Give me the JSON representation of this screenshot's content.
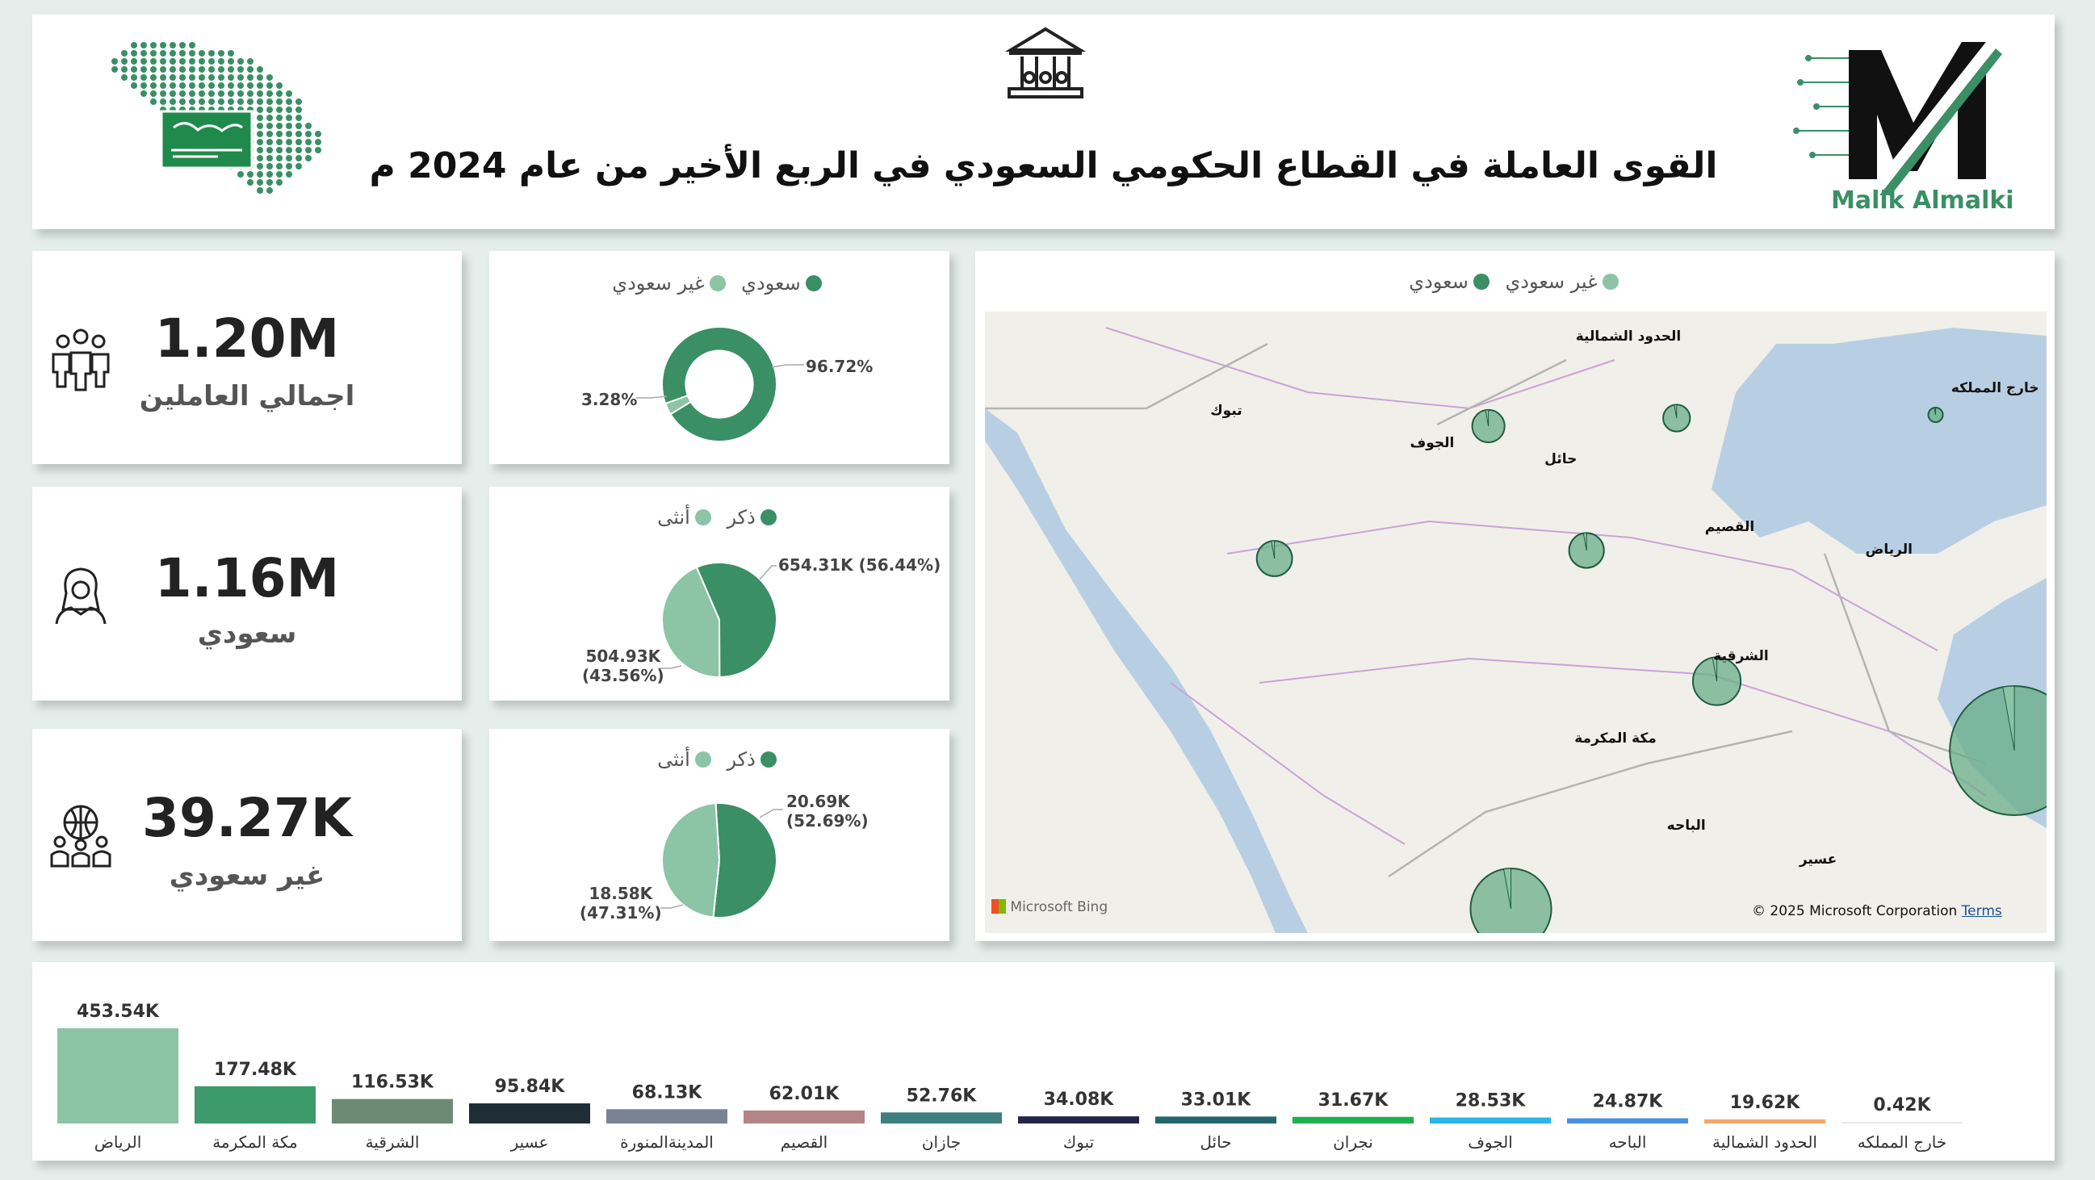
{
  "header": {
    "title": "القوى العاملة في القطاع الحكومي السعودي في الربع الأخير من عام 2024 م",
    "brand_name": "Malik Almalki"
  },
  "kpis": [
    {
      "value": "1.20M",
      "label": "اجمالي العاملين",
      "icon": "people-group-icon"
    },
    {
      "value": "1.16M",
      "label": "سعودي",
      "icon": "saudi-man-icon"
    },
    {
      "value": "39.27K",
      "label": "غير سعودي",
      "icon": "globe-people-icon"
    }
  ],
  "colors": {
    "dark_green": "#3a8f65",
    "light_green": "#8cc4a6",
    "map_bubble": "#6aad88",
    "water": "#b8cfe3",
    "land": "#f1efea"
  },
  "chart_data": [
    {
      "type": "pie",
      "id": "nationality",
      "legend": [
        "سعودي",
        "غير سعودي"
      ],
      "slices": [
        {
          "name": "سعودي",
          "value": 96.72,
          "label": "96.72%"
        },
        {
          "name": "غير سعودي",
          "value": 3.28,
          "label": "3.28%"
        }
      ],
      "donut": true
    },
    {
      "type": "pie",
      "id": "gender_saudi",
      "legend": [
        "ذكر",
        "أنثى"
      ],
      "slices": [
        {
          "name": "ذكر",
          "value": 654.31,
          "label": "654.31K (56.44%)"
        },
        {
          "name": "أنثى",
          "value": 504.93,
          "label_line1": "504.93K",
          "label_line2": "(43.56%)"
        }
      ]
    },
    {
      "type": "pie",
      "id": "gender_non_saudi",
      "legend": [
        "ذكر",
        "أنثى"
      ],
      "slices": [
        {
          "name": "ذكر",
          "value": 20.69,
          "label_line1": "20.69K",
          "label_line2": "(52.69%)"
        },
        {
          "name": "أنثى",
          "value": 18.58,
          "label_line1": "18.58K",
          "label_line2": "(47.31%)"
        }
      ]
    },
    {
      "type": "scatter",
      "id": "region_map",
      "legend": [
        "غير سعودي",
        "سعودي"
      ],
      "attribution_left": "Microsoft Bing",
      "attribution_right": "© 2025 Microsoft Corporation",
      "attribution_terms": "Terms",
      "regions": [
        {
          "name": "الحدود الشمالية",
          "value": 19.62
        },
        {
          "name": "الجوف",
          "value": 28.53
        },
        {
          "name": "تبوك",
          "value": 34.08
        },
        {
          "name": "حائل",
          "value": 33.01
        },
        {
          "name": "القصيم",
          "value": 62.01
        },
        {
          "name": "الرياض",
          "value": 453.54
        },
        {
          "name": "الشرقية",
          "value": 116.53
        },
        {
          "name": "مكة المكرمة",
          "value": 177.48
        },
        {
          "name": "الباحه",
          "value": 24.87
        },
        {
          "name": "عسير",
          "value": 95.84
        },
        {
          "name": "نجران",
          "value": 31.67
        },
        {
          "name": "جازان",
          "value": 52.76
        },
        {
          "name": "خارج المملكه",
          "value": 0.42
        }
      ]
    },
    {
      "type": "bar",
      "id": "region_bars",
      "ylim": [
        0,
        453.54
      ],
      "bars": [
        {
          "category": "الرياض",
          "value": 453.54,
          "label": "453.54K",
          "color": "#8cc4a6"
        },
        {
          "category": "مكة المكرمة",
          "value": 177.48,
          "label": "177.48K",
          "color": "#3d9a6b"
        },
        {
          "category": "الشرقية",
          "value": 116.53,
          "label": "116.53K",
          "color": "#6d8a75"
        },
        {
          "category": "عسير",
          "value": 95.84,
          "label": "95.84K",
          "color": "#1e2d36"
        },
        {
          "category": "المدينةالمنورة",
          "value": 68.13,
          "label": "68.13K",
          "color": "#7a8294"
        },
        {
          "category": "القصيم",
          "value": 62.01,
          "label": "62.01K",
          "color": "#b58484"
        },
        {
          "category": "جازان",
          "value": 52.76,
          "label": "52.76K",
          "color": "#3e7f80"
        },
        {
          "category": "تبوك",
          "value": 34.08,
          "label": "34.08K",
          "color": "#23264a"
        },
        {
          "category": "حائل",
          "value": 33.01,
          "label": "33.01K",
          "color": "#22676b"
        },
        {
          "category": "نجران",
          "value": 31.67,
          "label": "31.67K",
          "color": "#1db24d"
        },
        {
          "category": "الجوف",
          "value": 28.53,
          "label": "28.53K",
          "color": "#2ab5e6"
        },
        {
          "category": "الباحه",
          "value": 24.87,
          "label": "24.87K",
          "color": "#4a90e2"
        },
        {
          "category": "الحدود الشمالية",
          "value": 19.62,
          "label": "19.62K",
          "color": "#f2a66b"
        },
        {
          "category": "خارج المملكه",
          "value": 0.42,
          "label": "0.42K",
          "color": "#e8eaf0"
        }
      ]
    }
  ]
}
